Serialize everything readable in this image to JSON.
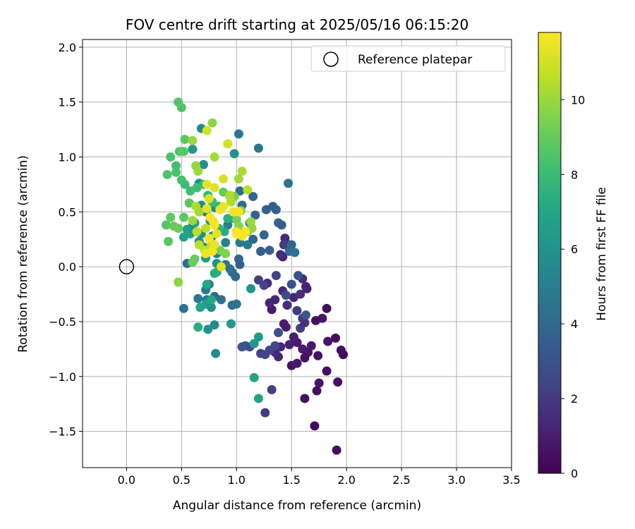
{
  "chart_data": {
    "type": "scatter",
    "title": "FOV centre drift starting at 2025/05/16 06:15:20",
    "xlabel": "Angular distance from reference (arcmin)",
    "ylabel": "Rotation from reference (arcmin)",
    "xlim": [
      -0.4,
      3.5
    ],
    "ylim": [
      -1.83,
      2.07
    ],
    "xticks": [
      0.0,
      0.5,
      1.0,
      1.5,
      2.0,
      2.5,
      3.0,
      3.5
    ],
    "xtick_labels": [
      "0.0",
      "0.5",
      "1.0",
      "1.5",
      "2.0",
      "2.5",
      "3.0",
      "3.5"
    ],
    "yticks": [
      -1.5,
      -1.0,
      -0.5,
      0.0,
      0.5,
      1.0,
      1.5,
      2.0
    ],
    "ytick_labels": [
      "−1.5",
      "−1.0",
      "−0.5",
      "0.0",
      "0.5",
      "1.0",
      "1.5",
      "2.0"
    ],
    "grid": true,
    "legend": {
      "placement": "top-right",
      "entries": [
        "Reference platepar"
      ]
    },
    "reference_point": {
      "x": 0.0,
      "y": 0.0
    },
    "colorbar": {
      "label": "Hours from first FF file",
      "range": [
        0,
        11.8
      ],
      "ticks": [
        0,
        2,
        4,
        6,
        8,
        10
      ],
      "tick_labels": [
        "0",
        "2",
        "4",
        "6",
        "8",
        "10"
      ],
      "colormap": "viridis"
    },
    "series": [
      {
        "columns": [
          "x",
          "y",
          "hours"
        ],
        "points": [
          [
            1.71,
            -1.45,
            0.3
          ],
          [
            1.91,
            -1.67,
            0.4
          ],
          [
            1.62,
            -1.2,
            0.5
          ],
          [
            1.73,
            -1.13,
            0.4
          ],
          [
            1.75,
            -1.06,
            0.6
          ],
          [
            1.92,
            -1.05,
            0.5
          ],
          [
            1.82,
            -0.95,
            0.4
          ],
          [
            1.97,
            -0.8,
            0.3
          ],
          [
            1.95,
            -0.76,
            0.5
          ],
          [
            1.9,
            -0.65,
            0.5
          ],
          [
            1.83,
            -0.68,
            0.6
          ],
          [
            1.78,
            -0.47,
            0.7
          ],
          [
            1.72,
            -0.49,
            0.5
          ],
          [
            1.82,
            -0.38,
            0.4
          ],
          [
            1.74,
            -0.81,
            0.6
          ],
          [
            1.68,
            -0.72,
            0.8
          ],
          [
            1.65,
            -0.78,
            0.7
          ],
          [
            1.62,
            -0.83,
            0.5
          ],
          [
            1.6,
            -0.75,
            0.9
          ],
          [
            1.55,
            -0.69,
            0.8
          ],
          [
            1.52,
            -0.64,
            1.0
          ],
          [
            1.5,
            -0.9,
            0.6
          ],
          [
            1.55,
            -0.88,
            0.8
          ],
          [
            1.48,
            -0.71,
            1.1
          ],
          [
            1.45,
            -0.55,
            1.0
          ],
          [
            1.43,
            -0.52,
            0.9
          ],
          [
            1.4,
            -0.73,
            1.3
          ],
          [
            1.38,
            -0.82,
            1.2
          ],
          [
            1.35,
            -0.78,
            1.4
          ],
          [
            1.32,
            -0.39,
            0.8
          ],
          [
            1.3,
            -0.33,
            1.2
          ],
          [
            1.35,
            -0.3,
            1.3
          ],
          [
            1.28,
            -0.15,
            1.3
          ],
          [
            1.42,
            -0.22,
            1.4
          ],
          [
            1.46,
            -0.35,
            1.6
          ],
          [
            1.52,
            -0.28,
            1.3
          ],
          [
            1.58,
            -0.25,
            1.6
          ],
          [
            1.63,
            -0.18,
            1.2
          ],
          [
            1.6,
            -0.11,
            1.4
          ],
          [
            1.64,
            -0.2,
            1.1
          ],
          [
            1.55,
            -0.4,
            1.9
          ],
          [
            1.6,
            -0.47,
            2.1
          ],
          [
            1.58,
            -0.56,
            2.2
          ],
          [
            1.62,
            -0.51,
            1.8
          ],
          [
            1.26,
            -1.33,
            2.0
          ],
          [
            1.32,
            -1.12,
            2.3
          ],
          [
            1.22,
            -0.79,
            2.4
          ],
          [
            1.26,
            -0.8,
            2.5
          ],
          [
            1.3,
            -0.76,
            2.4
          ],
          [
            1.35,
            -0.72,
            2.6
          ],
          [
            1.38,
            -0.6,
            2.8
          ],
          [
            1.2,
            -0.12,
            2.2
          ],
          [
            1.25,
            -0.17,
            2.4
          ],
          [
            1.36,
            -0.08,
            2.3
          ],
          [
            1.45,
            -0.26,
            2.7
          ],
          [
            1.5,
            -0.16,
            2.9
          ],
          [
            1.42,
            0.09,
            1.1
          ],
          [
            1.47,
            0.2,
            1.3
          ],
          [
            1.44,
            0.26,
            1.4
          ],
          [
            1.4,
            0.11,
            1.5
          ],
          [
            1.43,
            0.2,
            2.0
          ],
          [
            1.05,
            -0.73,
            3.0
          ],
          [
            1.08,
            -0.72,
            3.2
          ],
          [
            1.12,
            -0.73,
            2.8
          ],
          [
            1.56,
            -0.08,
            3.0
          ],
          [
            1.63,
            -0.44,
            3.3
          ],
          [
            1.22,
            0.14,
            3.4
          ],
          [
            1.3,
            0.15,
            3.6
          ],
          [
            1.38,
            0.4,
            3.8
          ],
          [
            1.41,
            0.38,
            3.5
          ],
          [
            1.27,
            0.52,
            3.7
          ],
          [
            1.33,
            0.55,
            3.4
          ],
          [
            1.36,
            0.52,
            3.6
          ],
          [
            1.25,
            0.29,
            3.8
          ],
          [
            1.15,
            0.25,
            3.9
          ],
          [
            1.17,
            0.47,
            3.7
          ],
          [
            1.15,
            0.64,
            3.8
          ],
          [
            1.05,
            0.56,
            4.0
          ],
          [
            1.03,
            0.69,
            4.1
          ],
          [
            0.98,
            0.44,
            3.9
          ],
          [
            1.02,
            0.07,
            3.8
          ],
          [
            0.96,
            -0.05,
            4.2
          ],
          [
            0.99,
            -0.09,
            4.0
          ],
          [
            1.03,
            0.02,
            3.6
          ],
          [
            0.9,
            0.02,
            4.5
          ],
          [
            0.94,
            -0.02,
            4.4
          ],
          [
            0.96,
            -0.35,
            4.3
          ],
          [
            1.0,
            -0.34,
            4.6
          ],
          [
            0.86,
            -0.3,
            4.4
          ],
          [
            0.8,
            -0.27,
            4.2
          ],
          [
            0.73,
            -0.3,
            4.6
          ],
          [
            0.72,
            -0.21,
            4.8
          ],
          [
            0.75,
            -0.16,
            4.5
          ],
          [
            0.65,
            -0.29,
            4.7
          ],
          [
            0.52,
            -0.38,
            4.4
          ],
          [
            0.55,
            0.03,
            4.3
          ],
          [
            1.47,
            0.76,
            4.6
          ],
          [
            1.02,
            1.21,
            4.8
          ],
          [
            1.2,
            1.08,
            4.6
          ],
          [
            1.48,
            0.14,
            4.2
          ],
          [
            1.5,
            0.2,
            3.9
          ],
          [
            1.53,
            0.13,
            4.5
          ],
          [
            1.03,
            0.22,
            4.7
          ],
          [
            1.1,
            0.2,
            4.8
          ],
          [
            1.12,
            0.4,
            5.0
          ],
          [
            0.92,
            0.38,
            5.1
          ],
          [
            0.9,
            0.22,
            5.2
          ],
          [
            0.82,
            0.12,
            5.3
          ],
          [
            0.78,
            0.28,
            5.4
          ],
          [
            0.76,
            0.42,
            5.5
          ],
          [
            0.72,
            0.5,
            5.3
          ],
          [
            0.68,
            0.3,
            5.6
          ],
          [
            0.66,
            0.23,
            5.7
          ],
          [
            0.7,
            0.18,
            5.5
          ],
          [
            0.6,
            0.37,
            5.4
          ],
          [
            0.68,
            1.26,
            5.6
          ],
          [
            0.7,
            0.93,
            5.8
          ],
          [
            0.66,
            0.76,
            5.9
          ],
          [
            0.68,
            0.56,
            5.7
          ],
          [
            0.8,
            0.54,
            5.8
          ],
          [
            0.82,
            0.03,
            5.9
          ],
          [
            0.8,
            -0.53,
            5.7
          ],
          [
            0.74,
            -0.57,
            5.9
          ],
          [
            0.77,
            -0.37,
            6.0
          ],
          [
            0.81,
            -0.79,
            5.7
          ],
          [
            1.13,
            -0.2,
            6.1
          ],
          [
            1.16,
            -0.7,
            6.2
          ],
          [
            1.2,
            -0.64,
            6.3
          ],
          [
            0.95,
            -0.52,
            6.4
          ],
          [
            0.98,
            1.03,
            6.0
          ],
          [
            0.6,
            1.07,
            6.3
          ],
          [
            0.72,
            0.08,
            6.4
          ],
          [
            0.62,
            0.4,
            6.6
          ],
          [
            0.58,
            0.3,
            6.6
          ],
          [
            0.52,
            0.27,
            6.8
          ],
          [
            0.55,
            0.34,
            6.7
          ],
          [
            0.72,
            -0.34,
            6.5
          ],
          [
            0.67,
            -0.37,
            6.9
          ],
          [
            0.77,
            -0.3,
            7.0
          ],
          [
            1.16,
            -1.01,
            7.0
          ],
          [
            1.2,
            -1.2,
            6.8
          ],
          [
            0.8,
            -0.06,
            7.2
          ],
          [
            0.65,
            -0.55,
            7.3
          ],
          [
            0.73,
            -0.16,
            7.1
          ],
          [
            0.82,
            -0.05,
            7.4
          ],
          [
            0.89,
            0.32,
            7.3
          ],
          [
            0.92,
            0.44,
            7.5
          ],
          [
            0.84,
            0.35,
            7.7
          ],
          [
            0.84,
            0.55,
            7.6
          ],
          [
            0.74,
            0.65,
            7.8
          ],
          [
            0.7,
            0.75,
            7.9
          ],
          [
            0.78,
            0.59,
            8.0
          ],
          [
            0.64,
            0.72,
            8.1
          ],
          [
            0.58,
            0.69,
            8.2
          ],
          [
            0.53,
            0.75,
            8.0
          ],
          [
            0.5,
            0.79,
            8.3
          ],
          [
            0.45,
            0.86,
            8.4
          ],
          [
            0.37,
            0.84,
            8.5
          ],
          [
            0.45,
            0.92,
            8.2
          ],
          [
            0.48,
            1.05,
            8.6
          ],
          [
            0.52,
            1.05,
            8.7
          ],
          [
            0.4,
            1.0,
            8.4
          ],
          [
            0.53,
            1.16,
            8.8
          ],
          [
            0.5,
            1.45,
            8.5
          ],
          [
            0.47,
            1.5,
            8.6
          ],
          [
            0.57,
            0.58,
            8.7
          ],
          [
            0.52,
            0.45,
            8.8
          ],
          [
            0.4,
            0.45,
            8.9
          ],
          [
            0.36,
            0.38,
            8.6
          ],
          [
            0.43,
            0.37,
            9.0
          ],
          [
            0.47,
            0.35,
            9.1
          ],
          [
            0.38,
            0.23,
            8.7
          ],
          [
            0.6,
            0.04,
            9.0
          ],
          [
            0.62,
            0.07,
            9.1
          ],
          [
            0.88,
            0.68,
            9.0
          ],
          [
            0.94,
            0.64,
            9.2
          ],
          [
            0.98,
            0.64,
            9.3
          ],
          [
            0.85,
            0.15,
            9.4
          ],
          [
            0.9,
            0.12,
            9.5
          ],
          [
            1.0,
            0.43,
            9.3
          ],
          [
            1.02,
            0.37,
            9.6
          ],
          [
            1.04,
            0.51,
            9.7
          ],
          [
            1.1,
            0.32,
            9.8
          ],
          [
            1.13,
            0.41,
            10.0
          ],
          [
            1.14,
            0.35,
            9.9
          ],
          [
            0.47,
            -0.14,
            9.8
          ],
          [
            0.78,
            1.31,
            9.8
          ],
          [
            0.6,
            1.15,
            10.0
          ],
          [
            0.65,
            0.87,
            10.1
          ],
          [
            0.63,
            0.92,
            9.9
          ],
          [
            0.8,
            1.0,
            10.2
          ],
          [
            0.94,
            0.65,
            10.3
          ],
          [
            0.95,
            0.59,
            10.4
          ],
          [
            1.02,
            0.8,
            10.1
          ],
          [
            1.05,
            0.87,
            10.3
          ],
          [
            1.1,
            0.7,
            10.5
          ],
          [
            0.63,
            0.55,
            10.4
          ],
          [
            0.66,
            0.5,
            10.2
          ],
          [
            0.6,
            0.42,
            10.0
          ],
          [
            0.64,
            0.32,
            10.5
          ],
          [
            0.72,
            0.35,
            10.6
          ],
          [
            0.71,
            0.15,
            10.7
          ],
          [
            0.66,
            0.2,
            10.6
          ],
          [
            0.77,
            0.2,
            10.8
          ],
          [
            0.73,
            1.24,
            11.0
          ],
          [
            0.92,
            1.12,
            11.0
          ],
          [
            0.88,
            0.8,
            11.1
          ],
          [
            0.8,
            0.72,
            11.2
          ],
          [
            0.73,
            0.75,
            11.3
          ],
          [
            0.75,
            0.62,
            11.2
          ],
          [
            0.73,
            0.53,
            11.4
          ],
          [
            0.79,
            0.41,
            11.5
          ],
          [
            0.82,
            0.3,
            11.3
          ],
          [
            0.85,
            0.52,
            11.5
          ],
          [
            0.88,
            0.55,
            11.4
          ],
          [
            0.97,
            0.5,
            11.6
          ],
          [
            1.02,
            0.5,
            11.7
          ],
          [
            1.0,
            0.32,
            11.5
          ],
          [
            1.05,
            0.28,
            11.6
          ],
          [
            1.08,
            0.32,
            11.7
          ],
          [
            0.78,
            0.14,
            11.6
          ],
          [
            0.8,
            0.2,
            11.4
          ],
          [
            0.72,
            0.12,
            11.5
          ],
          [
            0.75,
            0.26,
            11.6
          ],
          [
            0.8,
            0.38,
            11.7
          ],
          [
            0.76,
            0.45,
            11.8
          ],
          [
            0.86,
            0.0,
            11.3
          ],
          [
            1.0,
            0.3,
            11.8
          ]
        ]
      }
    ]
  }
}
